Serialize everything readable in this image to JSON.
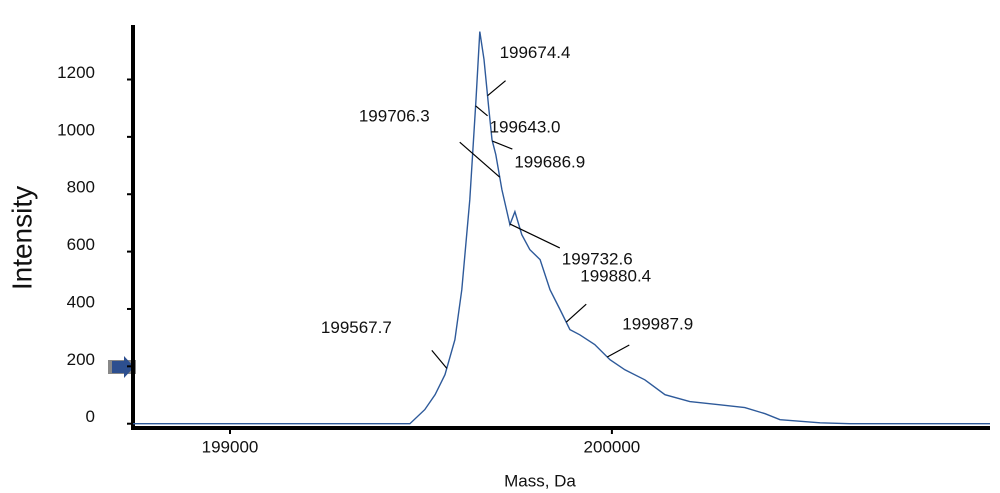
{
  "chart_data": {
    "type": "line",
    "xlabel": "Mass, Da",
    "ylabel": "Intensity",
    "color": "#2e5a9a",
    "xlim": [
      198746,
      200990
    ],
    "ylim": [
      -15,
      1390
    ],
    "xticks": [
      199000,
      200000
    ],
    "yticks": [
      0,
      200,
      400,
      600,
      800,
      1000,
      1200
    ],
    "x": [
      198746,
      199471,
      199510,
      199537,
      199563,
      199589,
      199607,
      199628,
      199644,
      199654,
      199665,
      199678,
      199686,
      199696,
      199712,
      199733,
      199746,
      199764,
      199785,
      199812,
      199838,
      199864,
      199890,
      199916,
      199955,
      199995,
      200034,
      200086,
      200139,
      200204,
      200283,
      200348,
      200401,
      200440,
      200545,
      200623,
      200990
    ],
    "values": [
      0,
      0,
      49,
      101,
      171,
      293,
      467,
      781,
      1130,
      1367,
      1270,
      1095,
      990,
      938,
      816,
      694,
      739,
      659,
      607,
      572,
      467,
      398,
      328,
      310,
      276,
      223,
      188,
      153,
      101,
      77,
      66,
      56,
      35,
      14,
      3,
      0,
      0
    ],
    "peak_labels": [
      {
        "value": 199643.0,
        "label": "199643.0"
      },
      {
        "value": 199674.4,
        "label": "199674.4"
      },
      {
        "value": 199686.9,
        "label": "199686.9"
      },
      {
        "value": 199706.3,
        "label": "199706.3"
      },
      {
        "value": 199732.6,
        "label": "199732.6"
      },
      {
        "value": 199880.4,
        "label": "199880.4"
      },
      {
        "value": 199987.9,
        "label": "199987.9"
      },
      {
        "value": 199567.7,
        "label": "199567.7"
      }
    ]
  }
}
